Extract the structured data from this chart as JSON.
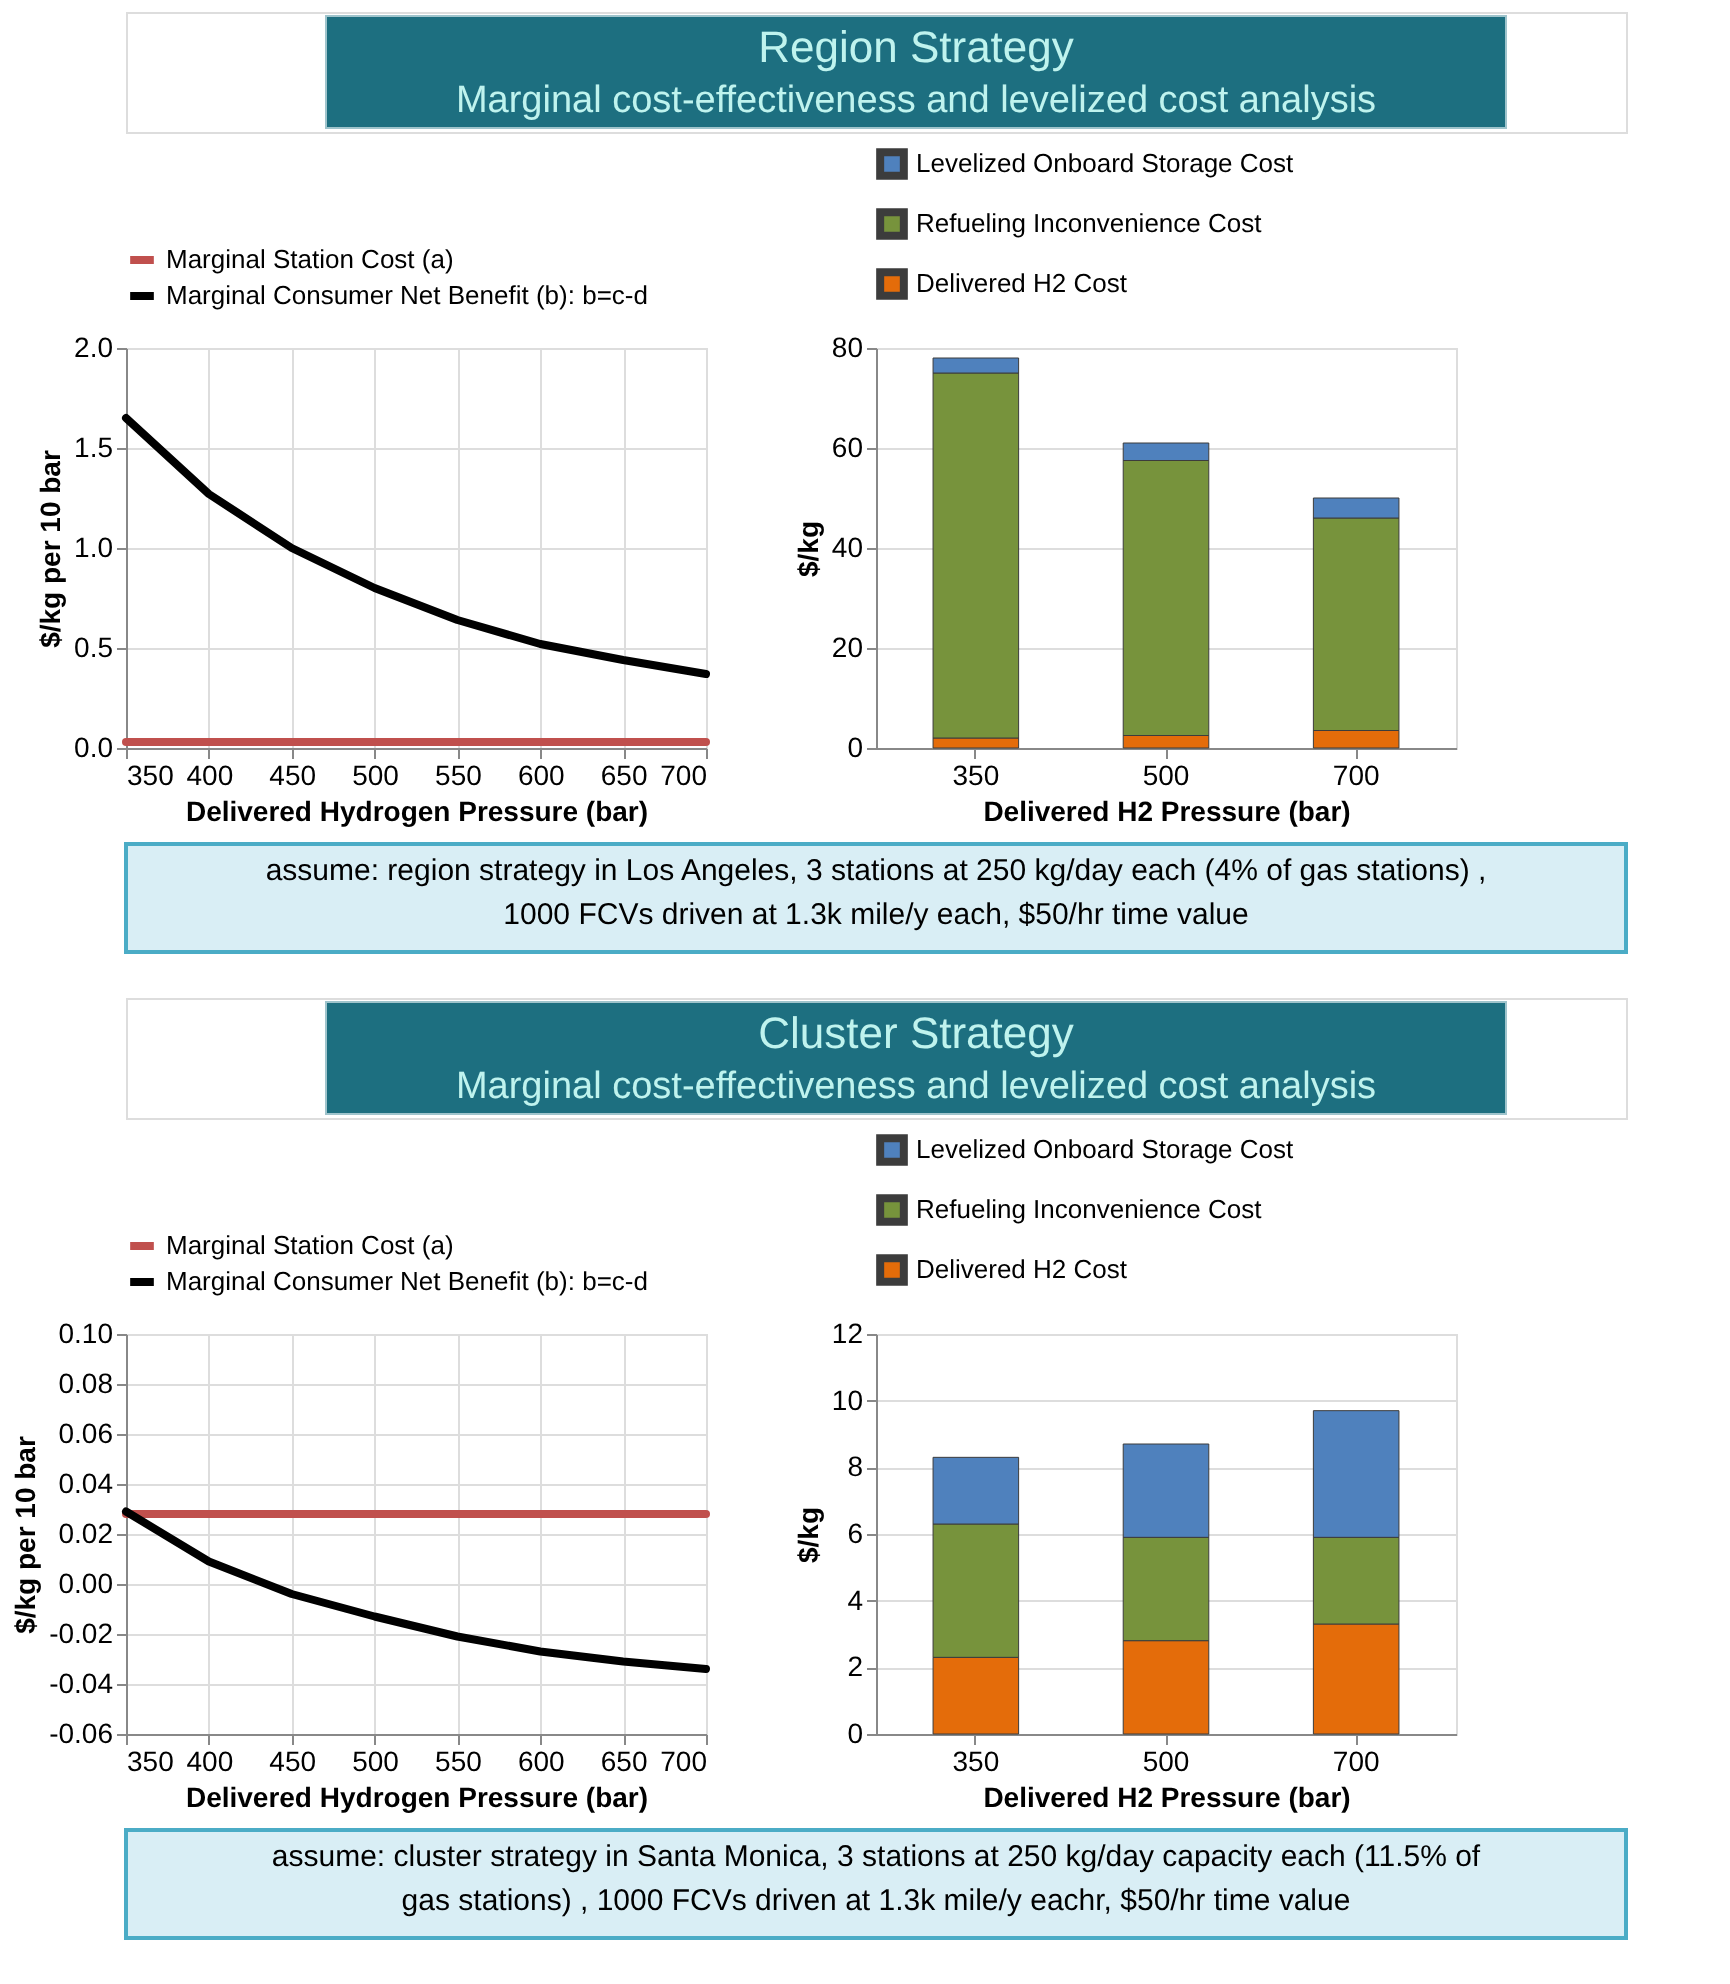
{
  "chart_data": [
    {
      "type": "other",
      "title": "Region Strategy",
      "subtitle": "Marginal cost-effectiveness and levelized cost analysis"
    },
    {
      "type": "line",
      "xlabel": "Delivered Hydrogen Pressure (bar)",
      "ylabel": "$/kg per 10 bar",
      "annotations": [
        "assume: region strategy in Los Angeles, 3 stations at 250 kg/day each (4% of gas stations) , 1000 FCVs driven at 1.3k mile/y each, $50/hr time value"
      ],
      "x": [
        350,
        400,
        450,
        500,
        550,
        600,
        650,
        700
      ],
      "series": [
        {
          "name": "Marginal Station Cost (a)",
          "color": "#c0504d",
          "values": [
            0.03,
            0.03,
            0.03,
            0.03,
            0.03,
            0.03,
            0.03,
            0.03
          ]
        },
        {
          "name": "Marginal Consumer Net Benefit (b): b=c-d",
          "color": "#000000",
          "values": [
            1.65,
            1.27,
            1.0,
            0.8,
            0.64,
            0.52,
            0.44,
            0.37
          ]
        }
      ],
      "xlim": [
        350,
        700
      ],
      "xticks": [
        350,
        400,
        450,
        500,
        550,
        600,
        650,
        700
      ],
      "ylim": [
        0,
        2
      ],
      "yticks": [
        {
          "value": 0,
          "label": "0.0"
        },
        {
          "value": 0.5,
          "label": "0.5"
        },
        {
          "value": 1,
          "label": "1.0"
        },
        {
          "value": 1.5,
          "label": "1.5"
        },
        {
          "value": 2,
          "label": "2.0"
        }
      ],
      "grid": true,
      "legend": "top",
      "marker": "none",
      "line_style": "solid"
    },
    {
      "type": "bar",
      "xlabel": "Delivered H2 Pressure (bar)",
      "ylabel": "$/kg",
      "categories": [
        "350",
        "500",
        "700"
      ],
      "stacked": true,
      "series": [
        {
          "name": "Delivered H2 Cost",
          "color": "#e46c0a",
          "values": [
            2,
            2.5,
            3.5
          ]
        },
        {
          "name": "Refueling Inconvenience Cost",
          "color": "#77933c",
          "values": [
            73,
            55,
            42.5
          ]
        },
        {
          "name": "Levelized Onboard Storage Cost",
          "color": "#4f81bd",
          "values": [
            3,
            3.5,
            4
          ]
        }
      ],
      "ylim": [
        0,
        80
      ],
      "yticks": [
        0,
        20,
        40,
        60,
        80
      ],
      "grid": "y",
      "legend": "top"
    },
    {
      "type": "other",
      "title": "Cluster Strategy",
      "subtitle": "Marginal cost-effectiveness and levelized cost analysis"
    },
    {
      "type": "line",
      "xlabel": "Delivered Hydrogen Pressure (bar)",
      "ylabel": "$/kg per 10 bar",
      "annotations": [
        "assume: cluster strategy in Santa Monica, 3 stations at 250 kg/day capacity each (11.5% of gas stations) , 1000 FCVs driven at 1.3k mile/y eachr, $50/hr time value"
      ],
      "x": [
        350,
        400,
        450,
        500,
        550,
        600,
        650,
        700
      ],
      "series": [
        {
          "name": "Marginal Station Cost (a)",
          "color": "#c0504d",
          "values": [
            0.028,
            0.028,
            0.028,
            0.028,
            0.028,
            0.028,
            0.028,
            0.028
          ]
        },
        {
          "name": "Marginal Consumer Net Benefit (b): b=c-d",
          "color": "#000000",
          "values": [
            0.029,
            0.009,
            -0.004,
            -0.013,
            -0.021,
            -0.027,
            -0.031,
            -0.034
          ]
        }
      ],
      "xlim": [
        350,
        700
      ],
      "xticks": [
        350,
        400,
        450,
        500,
        550,
        600,
        650,
        700
      ],
      "ylim": [
        -0.06,
        0.1
      ],
      "yticks": [
        {
          "value": -0.06,
          "label": "-0.06"
        },
        {
          "value": -0.04,
          "label": "-0.04"
        },
        {
          "value": -0.02,
          "label": "-0.02"
        },
        {
          "value": 0,
          "label": "0.00"
        },
        {
          "value": 0.02,
          "label": "0.02"
        },
        {
          "value": 0.04,
          "label": "0.04"
        },
        {
          "value": 0.06,
          "label": "0.06"
        },
        {
          "value": 0.08,
          "label": "0.08"
        },
        {
          "value": 0.1,
          "label": "0.10"
        }
      ],
      "grid": true,
      "legend": "top",
      "marker": "none",
      "line_style": "solid"
    },
    {
      "type": "bar",
      "xlabel": "Delivered H2 Pressure (bar)",
      "ylabel": "$/kg",
      "categories": [
        "350",
        "500",
        "700"
      ],
      "stacked": true,
      "series": [
        {
          "name": "Delivered H2 Cost",
          "color": "#e46c0a",
          "values": [
            2.3,
            2.8,
            3.3
          ]
        },
        {
          "name": "Refueling Inconvenience Cost",
          "color": "#77933c",
          "values": [
            4.0,
            3.1,
            2.6
          ]
        },
        {
          "name": "Levelized Onboard Storage Cost",
          "color": "#4f81bd",
          "values": [
            2.0,
            2.8,
            3.8
          ]
        }
      ],
      "ylim": [
        0,
        12
      ],
      "yticks": [
        0,
        2,
        4,
        6,
        8,
        10,
        12
      ],
      "grid": "y",
      "legend": "top"
    }
  ]
}
